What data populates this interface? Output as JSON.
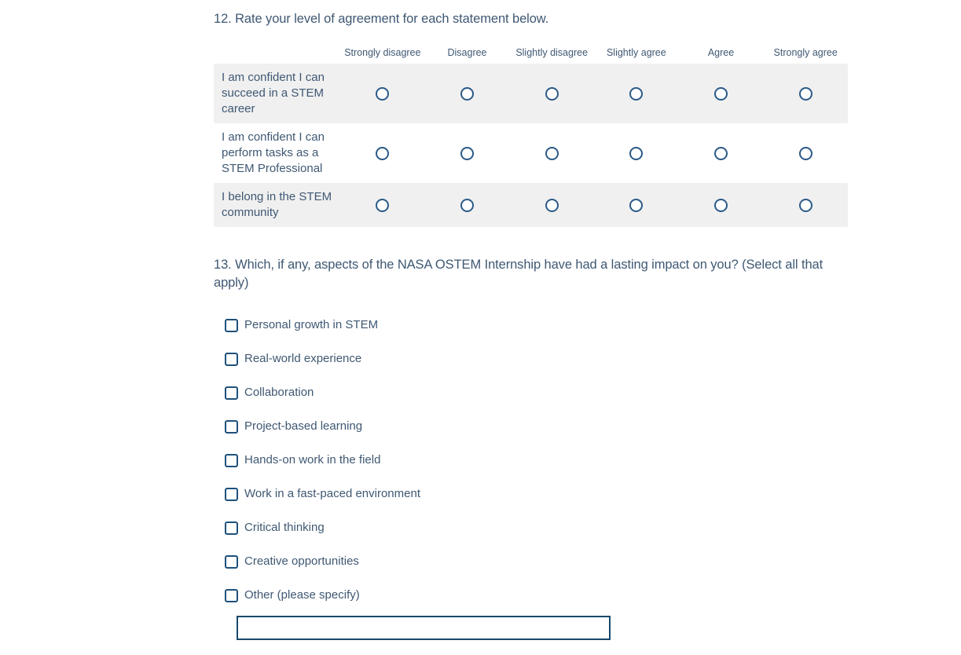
{
  "colors": {
    "text": "#3f5873",
    "radio_border": "#2b5a88",
    "checkbox_border": "#1e517b",
    "input_border": "#17496b",
    "row_stripe": "#f0f0f0",
    "background": "#ffffff"
  },
  "question12": {
    "title": "12. Rate your level of agreement for each statement below.",
    "columns": [
      "Strongly disagree",
      "Disagree",
      "Slightly disagree",
      "Slightly agree",
      "Agree",
      "Strongly agree"
    ],
    "rows": [
      {
        "label": "I am confident I can succeed in a STEM career"
      },
      {
        "label": "I am confident I can perform tasks as a STEM Professional"
      },
      {
        "label": "I belong in the STEM community"
      }
    ],
    "selected": null
  },
  "question13": {
    "title": "13. Which, if any, aspects of the NASA OSTEM Internship have had a lasting impact on you? (Select all that apply)",
    "options": [
      "Personal growth in STEM",
      "Real-world experience",
      "Collaboration",
      "Project-based learning",
      "Hands-on work in the field",
      "Work in a fast-paced environment",
      "Critical thinking",
      "Creative opportunities",
      "Other (please specify)"
    ],
    "other_input_value": ""
  }
}
